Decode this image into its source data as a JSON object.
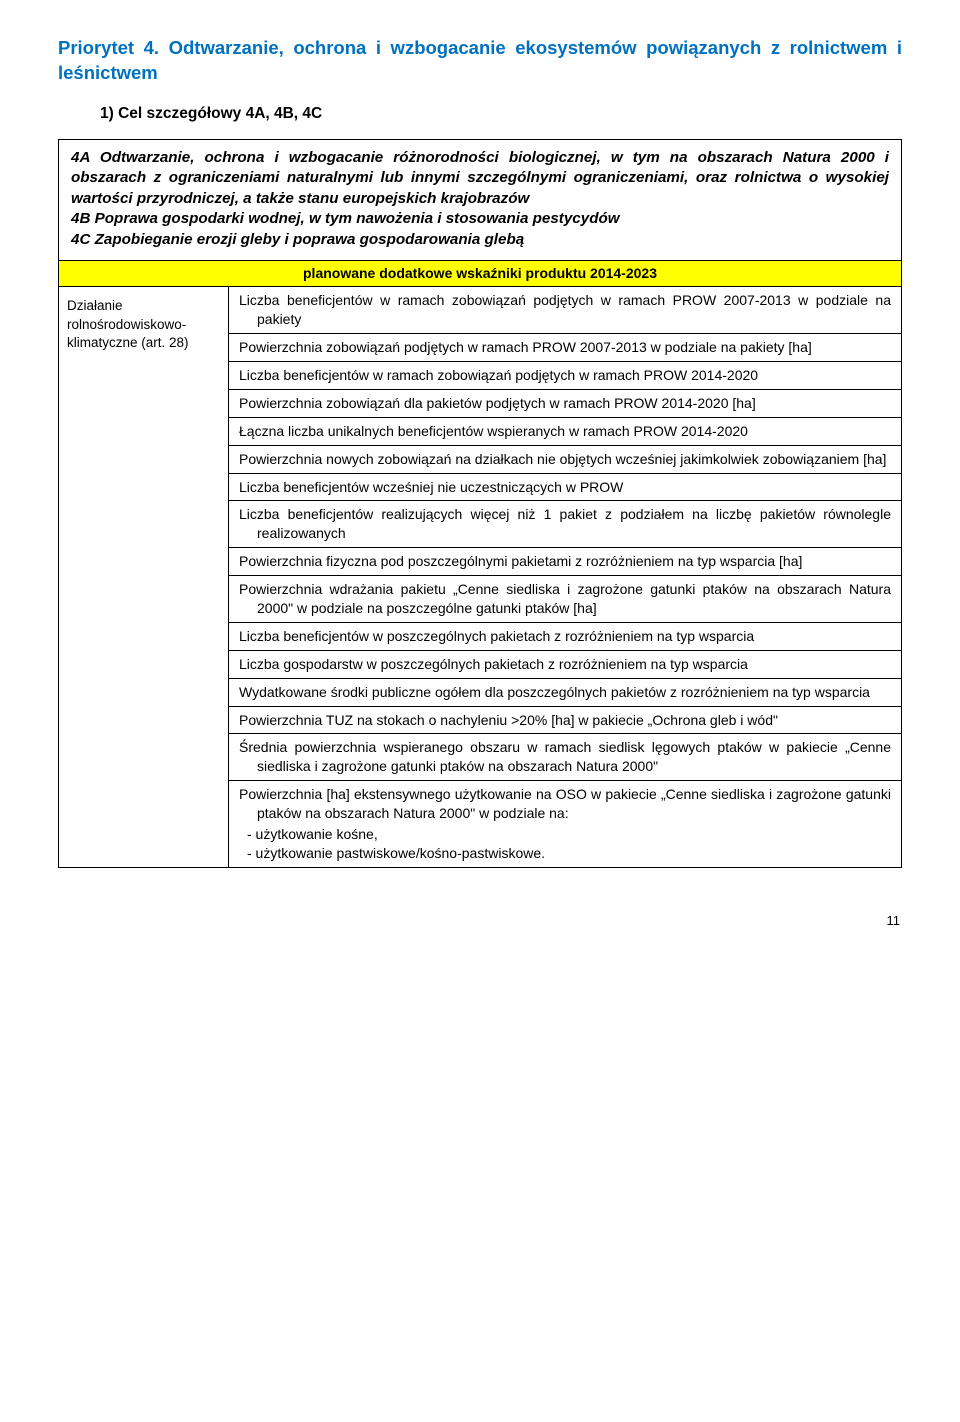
{
  "priority": {
    "title": "Priorytet 4. Odtwarzanie, ochrona i wzbogacanie ekosystemów powiązanych z rolnictwem i leśnictwem",
    "subgoal": "1) Cel szczegółowy 4A, 4B, 4C"
  },
  "objectives": {
    "p1": "4A Odtwarzanie, ochrona i wzbogacanie różnorodności biologicznej, w tym na obszarach Natura 2000 i obszarach z ograniczeniami naturalnymi lub innymi szczególnymi ograniczeniami, oraz rolnictwa o wysokiej wartości przyrodniczej, a także stanu europejskich krajobrazów",
    "p2": "4B Poprawa gospodarki wodnej, w tym nawożenia i stosowania pestycydów",
    "p3": "4C Zapobieganie erozji gleby i poprawa gospodarowania glebą"
  },
  "yellowHeader": "planowane dodatkowe wskaźniki produktu 2014-2023",
  "leftLabel": "Działanie rolnośrodowiskowo-klimatyczne (art. 28)",
  "indicators": {
    "i1": "Liczba beneficjentów w ramach zobowiązań podjętych w ramach PROW 2007-2013 w podziale na pakiety",
    "i2": "Powierzchnia zobowiązań podjętych w ramach PROW 2007-2013 w podziale na pakiety [ha]",
    "i3": "Liczba beneficjentów w ramach zobowiązań podjętych w ramach PROW 2014-2020",
    "i4": "Powierzchnia zobowiązań dla pakietów podjętych w ramach PROW 2014-2020 [ha]",
    "i5": "Łączna liczba unikalnych beneficjentów wspieranych w ramach PROW 2014-2020",
    "i6": "Powierzchnia nowych zobowiązań na działkach nie objętych wcześniej jakimkolwiek zobowiązaniem [ha]",
    "i7": "Liczba beneficjentów wcześniej nie uczestniczących w PROW",
    "i8": "Liczba beneficjentów realizujących więcej niż 1 pakiet z podziałem na liczbę pakietów równolegle realizowanych",
    "i9": "Powierzchnia fizyczna pod poszczególnymi pakietami z rozróżnieniem na typ wsparcia [ha]",
    "i10": "Powierzchnia wdrażania pakietu „Cenne siedliska i zagrożone gatunki ptaków na obszarach Natura 2000\" w podziale na poszczególne gatunki ptaków [ha]",
    "i11": "Liczba beneficjentów w poszczególnych pakietach z rozróżnieniem na typ wsparcia",
    "i12": "Liczba gospodarstw w poszczególnych pakietach z rozróżnieniem na typ wsparcia",
    "i13": "Wydatkowane środki publiczne ogółem dla poszczególnych pakietów z rozróżnieniem na typ wsparcia",
    "i14": "Powierzchnia TUZ na stokach o nachyleniu >20% [ha] w pakiecie „Ochrona gleb i wód\"",
    "i15": "Średnia powierzchnia wspieranego obszaru w ramach siedlisk lęgowych ptaków w pakiecie „Cenne siedliska i zagrożone gatunki ptaków na obszarach Natura 2000\"",
    "i16_main": "Powierzchnia [ha] ekstensywnego użytkowanie na OSO w pakiecie „Cenne siedliska i zagrożone gatunki ptaków na obszarach Natura 2000\" w podziale na:",
    "i16_b1": "- użytkowanie kośne,",
    "i16_b2": "- użytkowanie pastwiskowe/kośno-pastwiskowe."
  },
  "pageNumber": "11",
  "colors": {
    "accent": "#0070c0",
    "highlight": "#ffff00",
    "text": "#000000",
    "bg": "#ffffff"
  }
}
